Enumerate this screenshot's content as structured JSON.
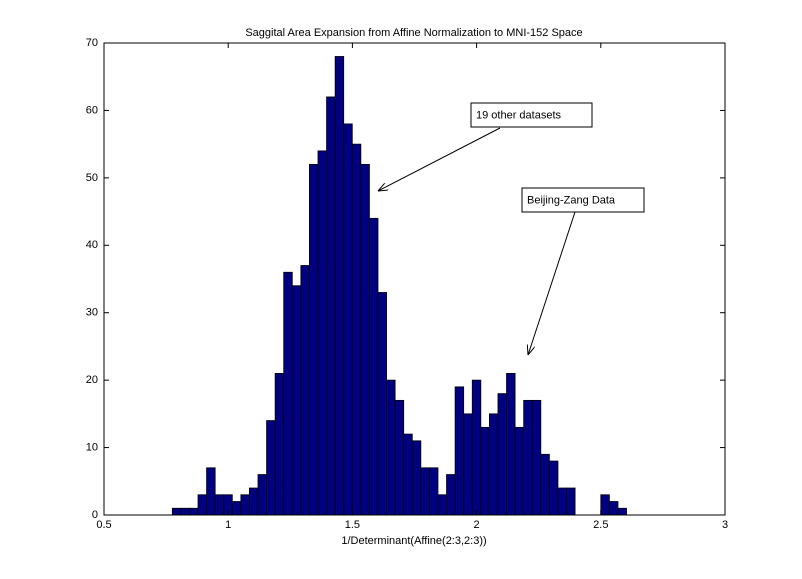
{
  "chart_data": {
    "type": "histogram",
    "title": "Saggital Area Expansion from Affine Normalization to MNI-152 Space",
    "x_label": "1/Determinant(Affine(2:3,2:3))",
    "bins": [
      0.775,
      0.8095,
      0.844,
      0.8785,
      0.913,
      0.9475,
      0.982,
      1.0165,
      1.051,
      1.0855,
      1.12,
      1.1545,
      1.189,
      1.2235,
      1.258,
      1.2925,
      1.327,
      1.3615,
      1.396,
      1.4305,
      1.465,
      1.4995,
      1.534,
      1.5685,
      1.603,
      1.6375,
      1.672,
      1.7065,
      1.741,
      1.7755,
      1.81,
      1.8445,
      1.879,
      1.9135,
      1.948,
      1.9825,
      2.017,
      2.0515,
      2.086,
      2.1205,
      2.155,
      2.1895,
      2.224,
      2.2585,
      2.293,
      2.3275,
      2.362,
      2.3965,
      2.431,
      2.4655,
      2.5,
      2.5345,
      2.569,
      2.6035
    ],
    "values": [
      1,
      1,
      1,
      3,
      7,
      3,
      3,
      2,
      3,
      4,
      6,
      14,
      21,
      36,
      34,
      37,
      52,
      54,
      62,
      68,
      58,
      55,
      52,
      44,
      33,
      20,
      17,
      12,
      11,
      7,
      7,
      3,
      6,
      19,
      15,
      20,
      13,
      15,
      18,
      21,
      13,
      17,
      17,
      9,
      8,
      4,
      4,
      0,
      0,
      0,
      3,
      2,
      1
    ],
    "color": "#000080",
    "xlim": [
      0.5,
      3
    ],
    "xticks": [
      0.5,
      1,
      1.5,
      2,
      2.5,
      3
    ],
    "ylim": [
      0,
      70
    ],
    "yticks": [
      0,
      10,
      20,
      30,
      40,
      50,
      60,
      70
    ],
    "annotations": [
      "19 other datasets",
      "Beijing-Zang Data"
    ]
  }
}
